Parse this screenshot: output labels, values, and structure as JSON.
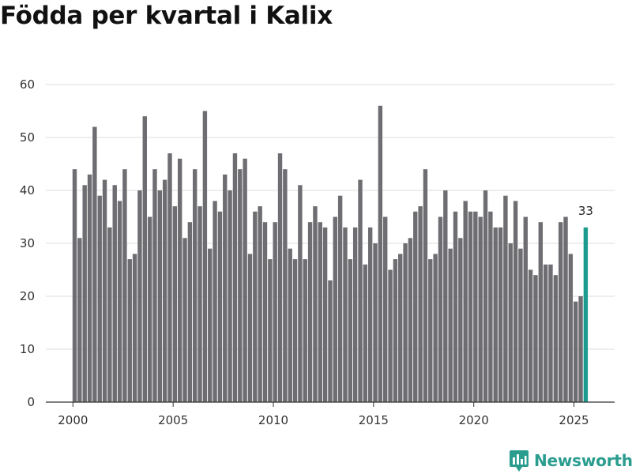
{
  "chart_data": {
    "type": "bar",
    "title": "Födda per kvartal i Kalix",
    "xlabel": "",
    "ylabel": "",
    "ylim": [
      0,
      60
    ],
    "yticks": [
      0,
      10,
      20,
      30,
      40,
      50,
      60
    ],
    "xticks": [
      2000,
      2005,
      2010,
      2015,
      2020,
      2025
    ],
    "x_start": 2000,
    "periods_per_year": 4,
    "values": [
      44,
      31,
      41,
      43,
      52,
      39,
      42,
      33,
      41,
      38,
      44,
      27,
      28,
      40,
      54,
      35,
      44,
      40,
      42,
      47,
      37,
      46,
      31,
      34,
      44,
      37,
      55,
      29,
      38,
      36,
      43,
      40,
      47,
      44,
      46,
      28,
      36,
      37,
      34,
      27,
      34,
      47,
      44,
      29,
      27,
      41,
      27,
      34,
      37,
      34,
      33,
      23,
      35,
      39,
      33,
      27,
      33,
      42,
      26,
      33,
      30,
      56,
      35,
      25,
      27,
      28,
      30,
      31,
      36,
      37,
      44,
      27,
      28,
      35,
      40,
      29,
      36,
      31,
      38,
      36,
      36,
      35,
      40,
      36,
      33,
      33,
      39,
      30,
      38,
      29,
      35,
      25,
      24,
      34,
      26,
      26,
      24,
      34,
      35,
      28,
      19,
      20,
      33
    ],
    "highlight_last": true,
    "highlight_label": "33",
    "bar_color": "#6e6d72",
    "highlight_color": "#1b9a8f",
    "grid": true
  },
  "brand": {
    "name": "Newsworthy",
    "icon": "bar-chart-logo-icon",
    "color": "#2a9d8f"
  }
}
